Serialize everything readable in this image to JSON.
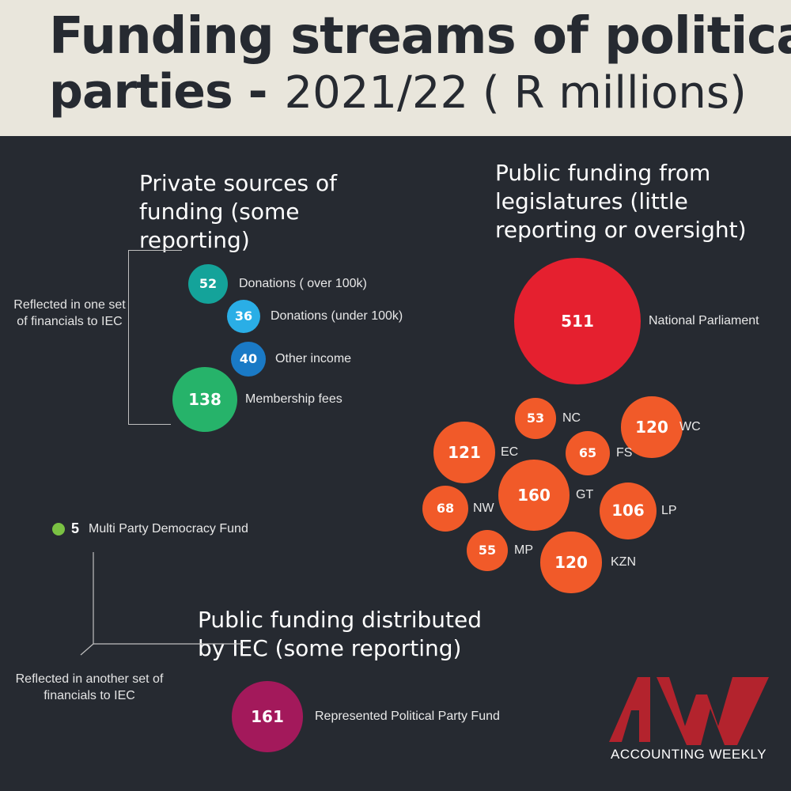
{
  "title": {
    "line1": "Funding streams of political",
    "line2_bold": "parties -",
    "line2_light": "2021/22 ( R millions)"
  },
  "sections": {
    "private": "Private sources of funding (some reporting)",
    "public_legislatures": "Public funding from legislatures (little reporting or oversight)",
    "public_iec": "Public funding distributed by IEC (some reporting)"
  },
  "notes": {
    "private_financials": "Reflected in one set of financials to IEC",
    "iec_financials": "Reflected in another set of financials to IEC"
  },
  "logo": {
    "text": "ACCOUNTING WEEKLY",
    "color": "#b3232d"
  },
  "chart_data": {
    "type": "bubble",
    "unit": "R millions",
    "groups": [
      {
        "name": "Private sources of funding (some reporting)",
        "items": [
          {
            "label": "Donations ( over 100k)",
            "value": 52,
            "color": "#14a39a"
          },
          {
            "label": "Donations (under 100k)",
            "value": 36,
            "color": "#2aaee6"
          },
          {
            "label": "Other income",
            "value": 40,
            "color": "#1a7ac6"
          },
          {
            "label": "Membership fees",
            "value": 138,
            "color": "#26b36a"
          }
        ]
      },
      {
        "name": "Public funding from legislatures (little reporting or oversight)",
        "items": [
          {
            "label": "National Parliament",
            "value": 511,
            "color": "#e5202f"
          },
          {
            "label": "NC",
            "value": 53,
            "color": "#f15a29"
          },
          {
            "label": "WC",
            "value": 120,
            "color": "#f15a29"
          },
          {
            "label": "EC",
            "value": 121,
            "color": "#f15a29"
          },
          {
            "label": "FS",
            "value": 65,
            "color": "#f15a29"
          },
          {
            "label": "GT",
            "value": 160,
            "color": "#f15a29"
          },
          {
            "label": "NW",
            "value": 68,
            "color": "#f15a29"
          },
          {
            "label": "LP",
            "value": 106,
            "color": "#f15a29"
          },
          {
            "label": "MP",
            "value": 55,
            "color": "#f15a29"
          },
          {
            "label": "KZN",
            "value": 120,
            "color": "#f15a29"
          }
        ]
      },
      {
        "name": "Public funding distributed by IEC (some reporting)",
        "items": [
          {
            "label": "Multi Party Democracy Fund",
            "value": 5,
            "color": "#7ac143"
          },
          {
            "label": "Represented Political Party Fund",
            "value": 161,
            "color": "#a3195b"
          }
        ]
      }
    ]
  }
}
